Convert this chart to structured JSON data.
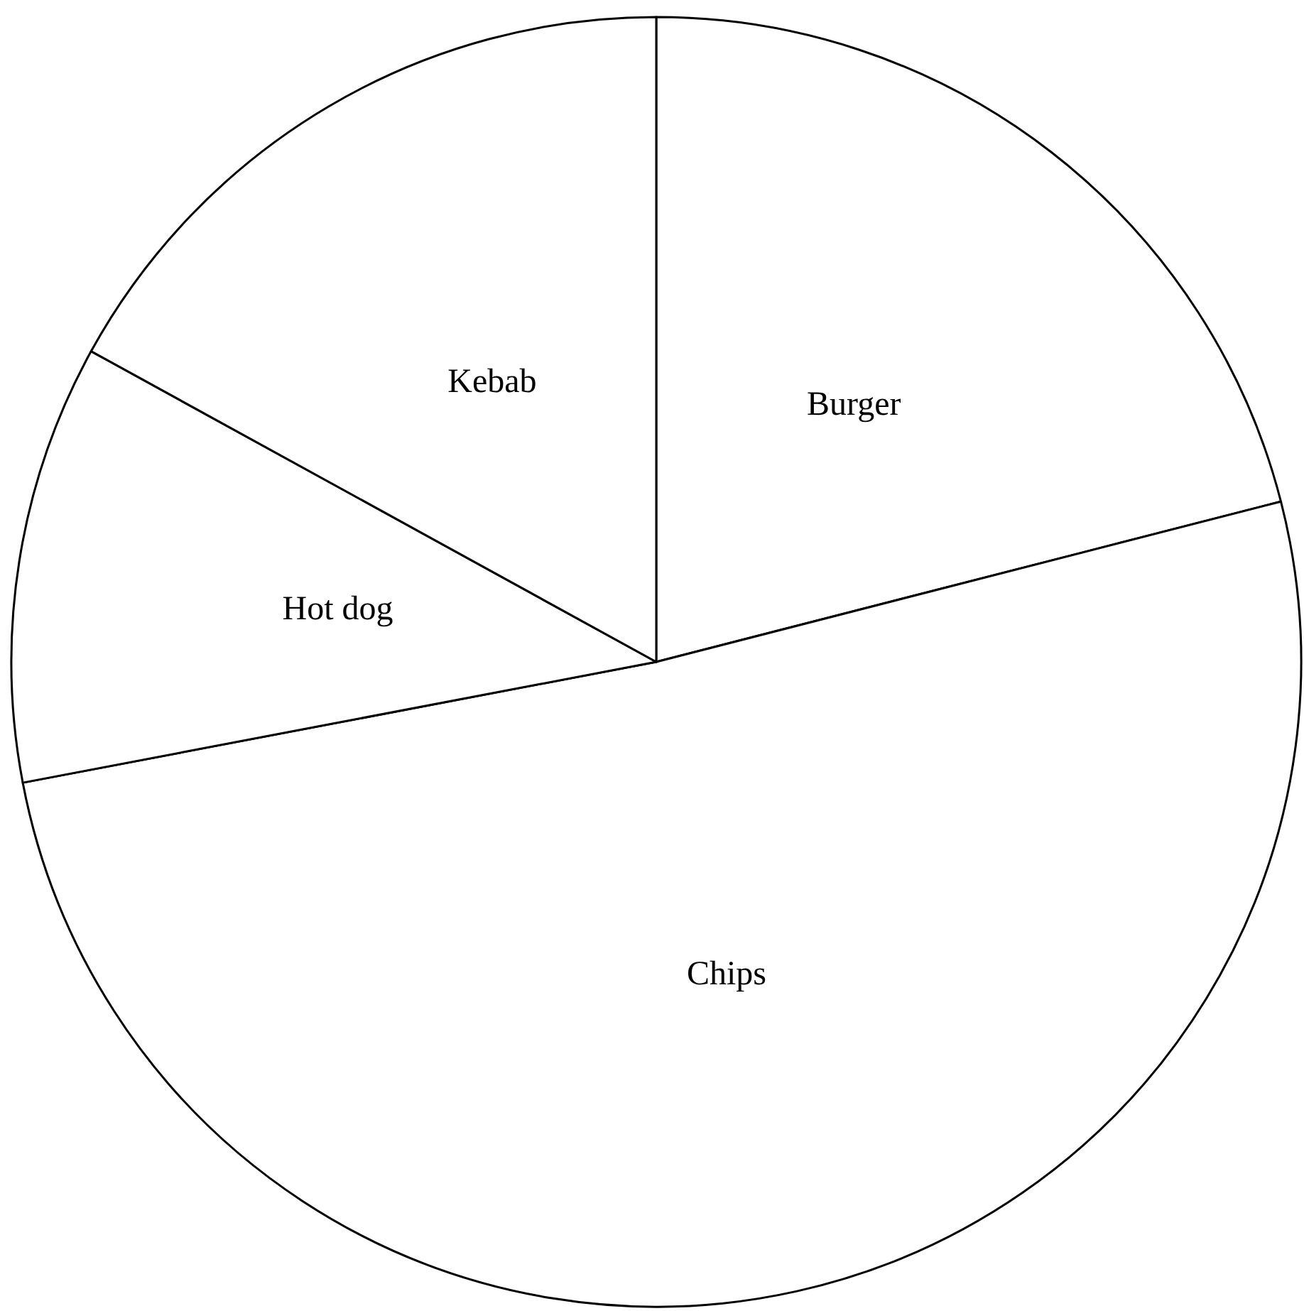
{
  "chart_data": {
    "type": "pie",
    "categories": [
      "Burger",
      "Chips",
      "Hot dog",
      "Kebab"
    ],
    "values": [
      21,
      51,
      11,
      17
    ],
    "colors": [
      "#ffffff",
      "#ffffff",
      "#ffffff",
      "#ffffff"
    ]
  }
}
